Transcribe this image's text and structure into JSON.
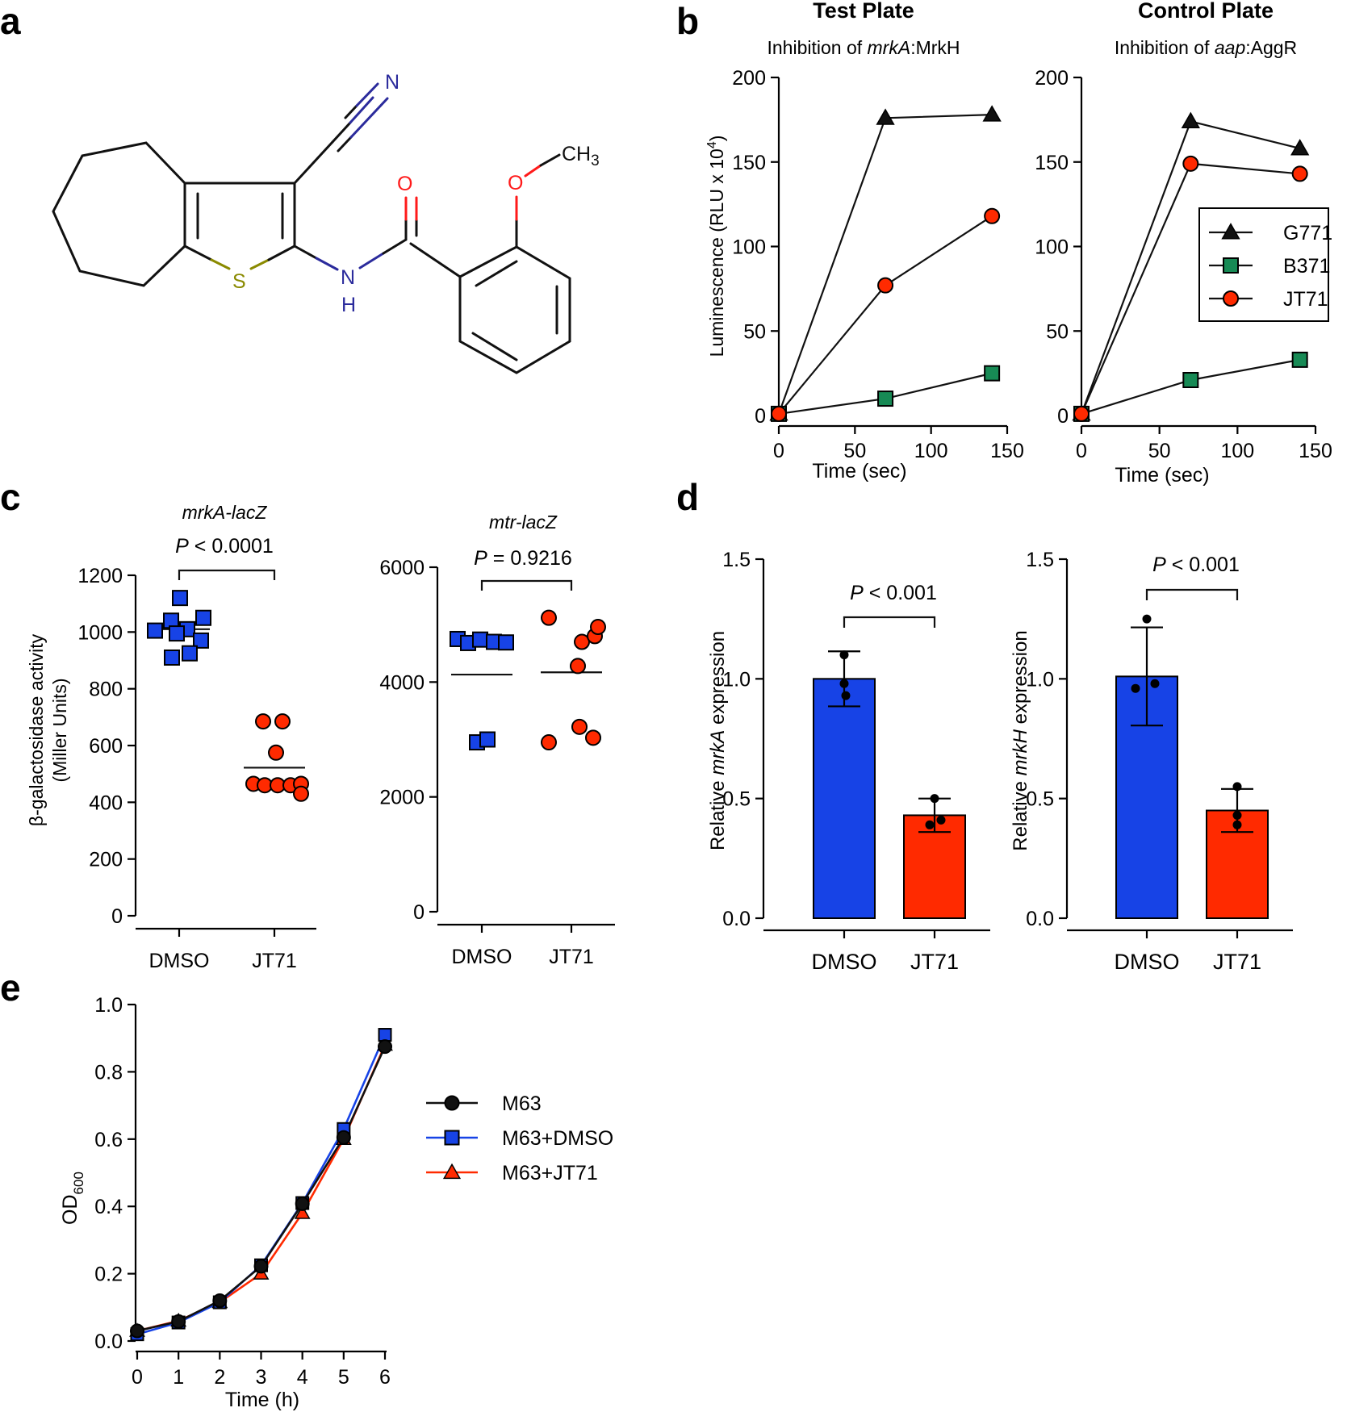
{
  "panel_labels": [
    "a",
    "b",
    "c",
    "d",
    "e"
  ],
  "colors": {
    "black": "#111111",
    "blue": "#1743e6",
    "red": "#ff2a00",
    "green": "#178a55",
    "nitrogen": "#2b2b9c",
    "oxygen": "#ff1a1a",
    "sulfur": "#8a8a00"
  },
  "molecule": {
    "atoms": {
      "N_nitrile": "N",
      "O_carbonyl": "O",
      "O_methoxy": "O",
      "methyl": "CH",
      "methyl_sub": "3",
      "S": "S",
      "N_amide": "N",
      "H_amide": "H"
    }
  },
  "chart_data": [
    {
      "id": "b_test",
      "type": "line",
      "title": "Test Plate",
      "subtitle_parts": [
        "Inhibition of ",
        "mrkA",
        ":MrkH"
      ],
      "xlabel": "Time (sec)",
      "ylabel": "Luminescence (RLU x 10",
      "ylabel_sup": "4",
      "ylabel_end": ")",
      "xlim": [
        0,
        150
      ],
      "ylim": [
        0,
        200
      ],
      "xticks": [
        "0",
        "50",
        "100",
        "150"
      ],
      "yticks": [
        "0",
        "50",
        "100",
        "150",
        "200"
      ],
      "series": [
        {
          "name": "G771",
          "marker": "triangle",
          "color": "#111111",
          "x": [
            0,
            70,
            140
          ],
          "y": [
            1,
            176,
            178
          ]
        },
        {
          "name": "B371",
          "marker": "square",
          "color": "#178a55",
          "x": [
            0,
            70,
            140
          ],
          "y": [
            1,
            10,
            25
          ]
        },
        {
          "name": "JT71",
          "marker": "circle",
          "color": "#ff2a00",
          "x": [
            0,
            70,
            140
          ],
          "y": [
            1,
            77,
            118
          ]
        }
      ]
    },
    {
      "id": "b_control",
      "type": "line",
      "title": "Control Plate",
      "subtitle_parts": [
        "Inhibition of ",
        "aap",
        ":AggR"
      ],
      "xlabel": "Time (sec)",
      "xlim": [
        0,
        150
      ],
      "ylim": [
        0,
        200
      ],
      "xticks": [
        "0",
        "50",
        "100",
        "150"
      ],
      "yticks": [
        "0",
        "50",
        "100",
        "150",
        "200"
      ],
      "legend": [
        "G771",
        "B371",
        "JT71"
      ],
      "series": [
        {
          "name": "G771",
          "marker": "triangle",
          "color": "#111111",
          "x": [
            0,
            70,
            140
          ],
          "y": [
            1,
            174,
            158
          ]
        },
        {
          "name": "B371",
          "marker": "square",
          "color": "#178a55",
          "x": [
            0,
            70,
            140
          ],
          "y": [
            1,
            21,
            33
          ]
        },
        {
          "name": "JT71",
          "marker": "circle",
          "color": "#ff2a00",
          "x": [
            0,
            70,
            140
          ],
          "y": [
            1,
            149,
            143
          ]
        }
      ]
    },
    {
      "id": "c_mrkA",
      "type": "scatter",
      "title": "mrkA-lacZ",
      "p_label": "P",
      "p_text": " < 0.0001",
      "ylabel": "β-galactosidase activity",
      "ylabel2": "(Miller Units)",
      "categories": [
        "DMSO",
        "JT71"
      ],
      "ylim": [
        0,
        1200
      ],
      "yticks": [
        "0",
        "200",
        "400",
        "600",
        "800",
        "1000",
        "1200"
      ],
      "groups": [
        {
          "name": "DMSO",
          "marker": "square",
          "color": "#1743e6",
          "mean": 1010,
          "values": [
            1120,
            1040,
            1050,
            1005,
            1010,
            995,
            970,
            910,
            925
          ]
        },
        {
          "name": "JT71",
          "marker": "circle",
          "color": "#ff2a00",
          "mean": 522,
          "values": [
            685,
            685,
            575,
            465,
            460,
            460,
            460,
            465,
            430
          ]
        }
      ]
    },
    {
      "id": "c_mtr",
      "type": "scatter",
      "title": "mtr-lacZ",
      "p_label": "P",
      "p_text": " = 0.9216",
      "categories": [
        "DMSO",
        "JT71"
      ],
      "ylim": [
        0,
        6000
      ],
      "yticks": [
        "0",
        "2000",
        "4000",
        "6000"
      ],
      "groups": [
        {
          "name": "DMSO",
          "marker": "square",
          "color": "#1743e6",
          "mean": 4130,
          "values": [
            4750,
            4680,
            4740,
            4700,
            4690,
            2950,
            3000
          ]
        },
        {
          "name": "JT71",
          "marker": "circle",
          "color": "#ff2a00",
          "mean": 4170,
          "values": [
            5120,
            4700,
            4800,
            4960,
            4280,
            3220,
            2950,
            3030
          ]
        }
      ]
    },
    {
      "id": "d_mrkA",
      "type": "bar",
      "p_label": "P",
      "p_text": " < 0.001",
      "ylabel_parts": [
        "Relative ",
        "mrkA",
        " expression"
      ],
      "categories": [
        "DMSO",
        "JT71"
      ],
      "ylim": [
        0,
        1.5
      ],
      "yticks": [
        "0.0",
        "0.5",
        "1.0",
        "1.5"
      ],
      "values": [
        1.0,
        0.43
      ],
      "errors": [
        0.115,
        0.07
      ],
      "colors": [
        "#1743e6",
        "#ff2a00"
      ],
      "points": [
        [
          1.1,
          0.98,
          0.93
        ],
        [
          0.5,
          0.41,
          0.39
        ]
      ]
    },
    {
      "id": "d_mrkH",
      "type": "bar",
      "p_label": "P",
      "p_text": " < 0.001",
      "ylabel_parts": [
        "Relative ",
        "mrkH",
        " expression"
      ],
      "categories": [
        "DMSO",
        "JT71"
      ],
      "ylim": [
        0,
        1.5
      ],
      "yticks": [
        "0.0",
        "0.5",
        "1.0",
        "1.5"
      ],
      "values": [
        1.01,
        0.45
      ],
      "errors": [
        0.205,
        0.09
      ],
      "colors": [
        "#1743e6",
        "#ff2a00"
      ],
      "points": [
        [
          1.25,
          0.98,
          0.96
        ],
        [
          0.55,
          0.43,
          0.39
        ]
      ]
    },
    {
      "id": "e_growth",
      "type": "line",
      "xlabel": "Time (h)",
      "ylabel": "OD",
      "ylabel_sub": "600",
      "xlim": [
        0,
        6
      ],
      "ylim": [
        0,
        1.0
      ],
      "xticks": [
        "0",
        "1",
        "2",
        "3",
        "4",
        "5",
        "6"
      ],
      "yticks": [
        "0.0",
        "0.2",
        "0.4",
        "0.6",
        "0.8",
        "1.0"
      ],
      "series": [
        {
          "name": "M63+JT71",
          "marker": "triangle",
          "color": "#ff2a00",
          "x": [
            0,
            1,
            2,
            3,
            4,
            5,
            6
          ],
          "y": [
            0.03,
            0.06,
            0.115,
            0.2,
            0.38,
            0.6,
            0.88
          ]
        },
        {
          "name": "M63+DMSO",
          "marker": "square",
          "color": "#1743e6",
          "x": [
            0,
            1,
            2,
            3,
            4,
            5,
            6
          ],
          "y": [
            0.02,
            0.055,
            0.115,
            0.225,
            0.41,
            0.63,
            0.91
          ]
        },
        {
          "name": "M63",
          "marker": "circle",
          "color": "#111111",
          "x": [
            0,
            1,
            2,
            3,
            4,
            5,
            6
          ],
          "y": [
            0.03,
            0.058,
            0.12,
            0.222,
            0.408,
            0.605,
            0.875
          ]
        }
      ],
      "legend": [
        "M63",
        "M63+DMSO",
        "M63+JT71"
      ]
    }
  ]
}
